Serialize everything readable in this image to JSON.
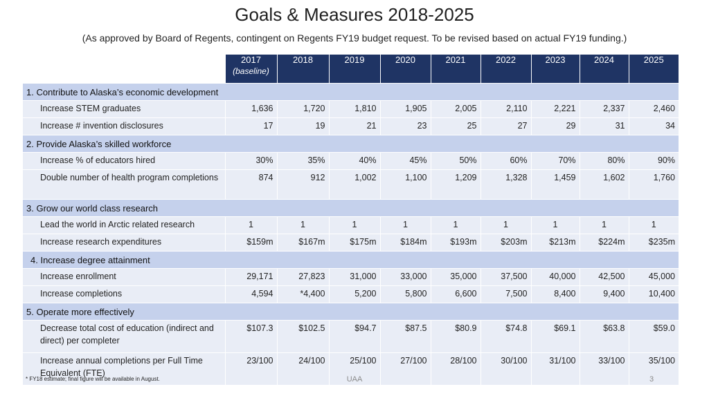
{
  "title": "Goals & Measures 2018-2025",
  "subtitle": "(As approved by Board of Regents, contingent on Regents FY19 budget request. To be revised based on actual FY19 funding.)",
  "header": {
    "years": [
      "2017",
      "2018",
      "2019",
      "2020",
      "2021",
      "2022",
      "2023",
      "2024",
      "2025"
    ],
    "baseline_note": "(baseline)"
  },
  "goals": [
    {
      "label": "1. Contribute to Alaska’s economic development",
      "measures": [
        {
          "label": "Increase STEM graduates",
          "values": [
            "1,636",
            "1,720",
            "1,810",
            "1,905",
            "2,005",
            "2,110",
            "2,221",
            "2,337",
            "2,460"
          ]
        },
        {
          "label": "Increase # invention disclosures",
          "values": [
            "17",
            "19",
            "21",
            "23",
            "25",
            "27",
            "29",
            "31",
            "34"
          ]
        }
      ]
    },
    {
      "label": "2. Provide Alaska’s skilled workforce",
      "measures": [
        {
          "label": "Increase % of educators hired",
          "values": [
            "30%",
            "35%",
            "40%",
            "45%",
            "50%",
            "60%",
            "70%",
            "80%",
            "90%"
          ]
        },
        {
          "label": "Double number of health program completions",
          "values": [
            "874",
            "912",
            "1,002",
            "1,100",
            "1,209",
            "1,328",
            "1,459",
            "1,602",
            "1,760"
          ]
        }
      ]
    },
    {
      "label": "3. Grow our world class research",
      "measures": [
        {
          "label": "Lead the world in Arctic related research",
          "values": [
            "1",
            "1",
            "1",
            "1",
            "1",
            "1",
            "1",
            "1",
            "1"
          ]
        },
        {
          "label": "Increase research expenditures",
          "values": [
            "$159m",
            "$167m",
            "$175m",
            "$184m",
            "$193m",
            "$203m",
            "$213m",
            "$224m",
            "$235m"
          ]
        }
      ]
    },
    {
      "label": "4. Increase degree attainment",
      "measures": [
        {
          "label": "Increase enrollment",
          "values": [
            "29,171",
            "27,823",
            "31,000",
            "33,000",
            "35,000",
            "37,500",
            "40,000",
            "42,500",
            "45,000"
          ]
        },
        {
          "label": "Increase completions",
          "values": [
            "4,594",
            "*4,400",
            "5,200",
            "5,800",
            "6,600",
            "7,500",
            "8,400",
            "9,400",
            "10,400"
          ]
        }
      ]
    },
    {
      "label": "5. Operate more effectively",
      "measures": [
        {
          "label": "Decrease total cost of education (indirect and direct) per completer",
          "values": [
            "$107.3",
            "$102.5",
            "$94.7",
            "$87.5",
            "$80.9",
            "$74.8",
            "$69.1",
            "$63.8",
            "$59.0"
          ]
        },
        {
          "label": "Increase annual completions per Full Time Equivalent (FTE)",
          "values": [
            "23/100",
            "24/100",
            "25/100",
            "27/100",
            "28/100",
            "30/100",
            "31/100",
            "33/100",
            "35/100"
          ]
        }
      ]
    }
  ],
  "footnote": "* FY18 estimate; final figure will be available in August.",
  "footer_center": "UAA",
  "page_number": "3"
}
